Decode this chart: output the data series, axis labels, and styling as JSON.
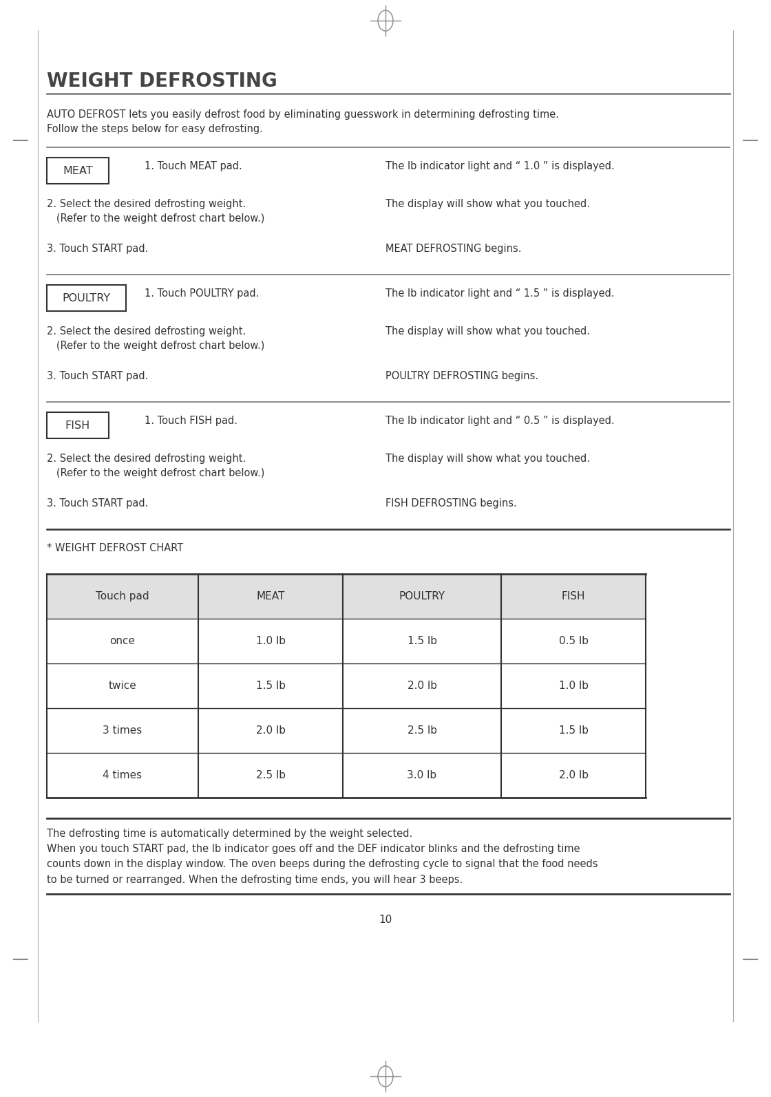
{
  "page_number": "10",
  "title": "WEIGHT DEFROSTING",
  "intro_text": "AUTO DEFROST lets you easily defrost food by eliminating guesswork in determining defrosting time.\nFollow the steps below for easy defrosting.",
  "sections": [
    {
      "label": "MEAT",
      "step1_left": "1. Touch MEAT pad.",
      "step1_right": "The lb indicator light and “ 1.0 ” is displayed.",
      "step2_left": "2. Select the desired defrosting weight.\n   (Refer to the weight defrost chart below.)",
      "step2_right": "The display will show what you touched.",
      "step3_left": "3. Touch START pad.",
      "step3_right": "MEAT DEFROSTING begins."
    },
    {
      "label": "POULTRY",
      "step1_left": "1. Touch POULTRY pad.",
      "step1_right": "The lb indicator light and “ 1.5 ” is displayed.",
      "step2_left": "2. Select the desired defrosting weight.\n   (Refer to the weight defrost chart below.)",
      "step2_right": "The display will show what you touched.",
      "step3_left": "3. Touch START pad.",
      "step3_right": "POULTRY DEFROSTING begins."
    },
    {
      "label": "FISH",
      "step1_left": "1. Touch FISH pad.",
      "step1_right": "The lb indicator light and “ 0.5 ” is displayed.",
      "step2_left": "2. Select the desired defrosting weight.\n   (Refer to the weight defrost chart below.)",
      "step2_right": "The display will show what you touched.",
      "step3_left": "3. Touch START pad.",
      "step3_right": "FISH DEFROSTING begins."
    }
  ],
  "chart_title": "* WEIGHT DEFROST CHART",
  "table_headers": [
    "Touch pad",
    "MEAT",
    "POULTRY",
    "FISH"
  ],
  "table_rows": [
    [
      "once",
      "1.0 lb",
      "1.5 lb",
      "0.5 lb"
    ],
    [
      "twice",
      "1.5 lb",
      "2.0 lb",
      "1.0 lb"
    ],
    [
      "3 times",
      "2.0 lb",
      "2.5 lb",
      "1.5 lb"
    ],
    [
      "4 times",
      "2.5 lb",
      "3.0 lb",
      "2.0 lb"
    ]
  ],
  "footer_text": "The defrosting time is automatically determined by the weight selected.\nWhen you touch START pad, the lb indicator goes off and the DEF indicator blinks and the defrosting time\ncounts down in the display window. The oven beeps during the defrosting cycle to signal that the food needs\nto be turned or rearranged. When the defrosting time ends, you will hear 3 beeps.",
  "bg_color": "#ffffff",
  "text_color": "#333333",
  "title_color": "#444444",
  "header_bg": "#e0e0e0",
  "table_border": "#333333",
  "line_color": "#555555",
  "label_box_color": "#ffffff",
  "label_box_border": "#333333"
}
